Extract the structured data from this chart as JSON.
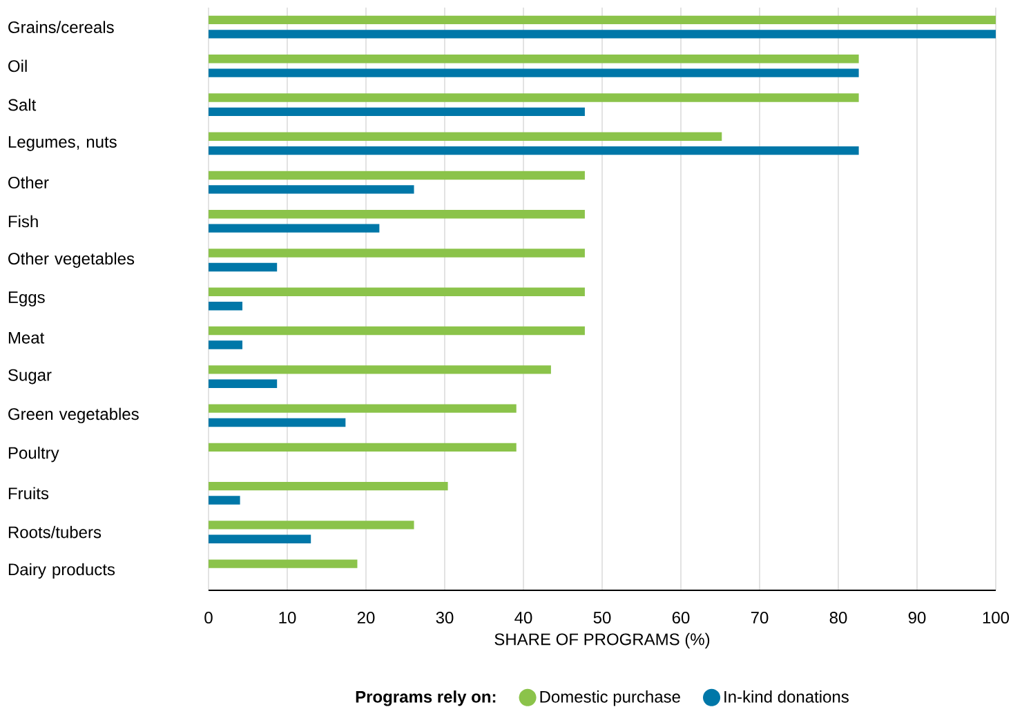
{
  "chart_data": {
    "type": "bar",
    "orientation": "horizontal",
    "xlabel": "SHARE OF PROGRAMS (%)",
    "legend_title": "Programs rely on:",
    "categories": [
      "Grains/cereals",
      "Oil",
      "Salt",
      "Legumes, nuts",
      "Other",
      "Fish",
      "Other vegetables",
      "Eggs",
      "Meat",
      "Sugar",
      "Green vegetables",
      "Poultry",
      "Fruits",
      "Roots/tubers",
      "Dairy products"
    ],
    "series": [
      {
        "name": "Domestic purchase",
        "color": "#8bc34a",
        "values": [
          100,
          82.6,
          82.6,
          65.2,
          47.8,
          47.8,
          47.8,
          47.8,
          47.8,
          43.5,
          39.1,
          39.1,
          30.4,
          26.1,
          18.9
        ]
      },
      {
        "name": "In-kind donations",
        "color": "#0077a8",
        "values": [
          100,
          82.6,
          47.8,
          82.6,
          26.1,
          21.7,
          8.7,
          4.3,
          4.3,
          8.7,
          17.4,
          0,
          4.0,
          13.0,
          0
        ]
      }
    ],
    "xlim": [
      0,
      100
    ],
    "xticks": [
      0,
      10,
      20,
      30,
      40,
      50,
      60,
      70,
      80,
      90,
      100
    ],
    "grid": "x",
    "legend": "bottom"
  }
}
